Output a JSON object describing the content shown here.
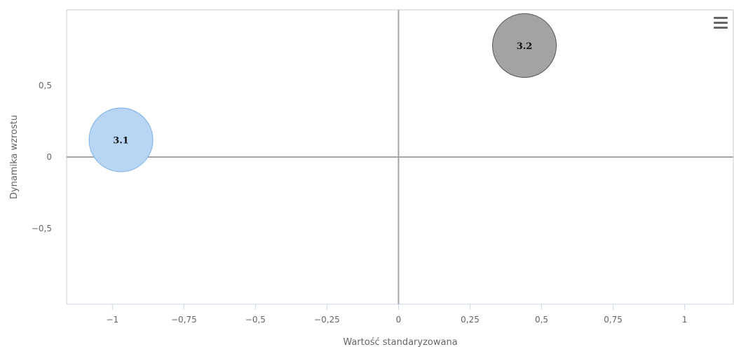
{
  "chart_data": {
    "type": "bubble",
    "xlabel": "Wartość standaryzowana",
    "ylabel": "Dynamika wzrostu",
    "xlim": [
      -1.16,
      1.17
    ],
    "ylim": [
      -1.03,
      1.03
    ],
    "x_ticks": [
      -1,
      -0.75,
      -0.5,
      -0.25,
      0,
      0.25,
      0.5,
      0.75,
      1
    ],
    "x_tick_labels": [
      "−1",
      "−0,75",
      "−0,5",
      "−0,25",
      "0",
      "0,25",
      "0,5",
      "0,75",
      "1"
    ],
    "y_ticks": [
      -0.5,
      0,
      0.5
    ],
    "y_tick_labels": [
      "−0,5",
      "0",
      "0,5"
    ],
    "grid": false,
    "points": [
      {
        "label": "3.1",
        "x": -0.97,
        "y": 0.12,
        "fill": "#b8d6f3",
        "stroke": "#7ab0e6"
      },
      {
        "label": "3.2",
        "x": 0.44,
        "y": 0.78,
        "fill": "#a3a3a6",
        "stroke": "#555555"
      }
    ],
    "reference_lines": {
      "x0": true,
      "y0": true
    }
  },
  "menu": {
    "icon": "hamburger-menu-icon"
  }
}
